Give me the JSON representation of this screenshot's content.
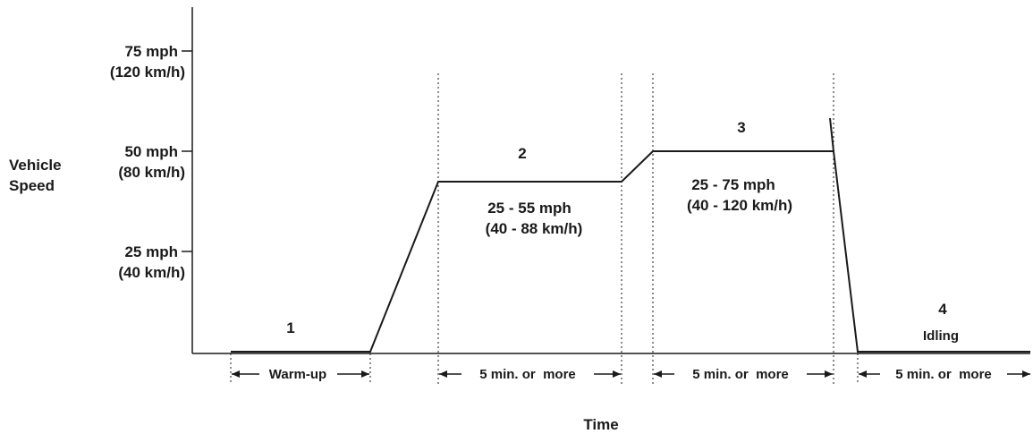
{
  "axes": {
    "y_label_line1": "Vehicle",
    "y_label_line2": "Speed",
    "x_label": "Time",
    "y_ticks": [
      {
        "mph": "75 mph",
        "kmh": "(120 km/h)"
      },
      {
        "mph": "50 mph",
        "kmh": "(80 km/h)"
      },
      {
        "mph": "25 mph",
        "kmh": "(40 km/h)"
      }
    ]
  },
  "phases": [
    {
      "number": "1",
      "range_mph": "",
      "range_kmh": "",
      "note": "",
      "duration": "Warm-up"
    },
    {
      "number": "2",
      "range_mph": "25 - 55 mph",
      "range_kmh": "(40 - 88 km/h)",
      "note": "",
      "duration": "5 min. or  more"
    },
    {
      "number": "3",
      "range_mph": "25 - 75 mph",
      "range_kmh": "(40 - 120 km/h)",
      "note": "",
      "duration": "5 min. or  more"
    },
    {
      "number": "4",
      "range_mph": "",
      "range_kmh": "",
      "note": "Idling",
      "duration": "5 min. or  more"
    }
  ],
  "colors": {
    "line": "#1a1a1a",
    "background": "#ffffff"
  }
}
